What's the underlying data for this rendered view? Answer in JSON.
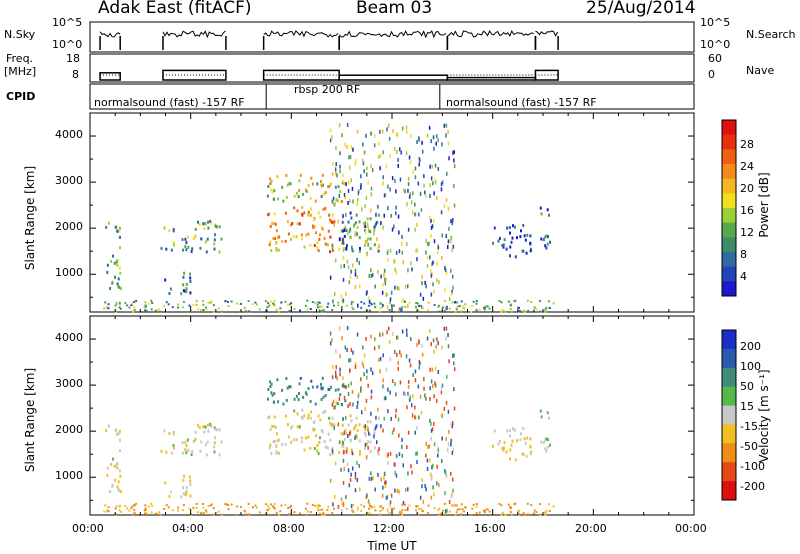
{
  "header": {
    "station": "Adak East (fitACF)",
    "beam": "Beam 03",
    "date": "25/Aug/2014"
  },
  "strips": {
    "nsky_label": "N.Sky",
    "nsky_ticks": [
      "10^5",
      "10^0"
    ],
    "nsearch_label": "N.Search",
    "nsearch_ticks": [
      "10^5",
      "10^0"
    ],
    "freq_label_line1": "Freq.",
    "freq_label_line2": "[MHz]",
    "freq_ticks": [
      "18",
      "8"
    ],
    "nave_label": "Nave",
    "nave_ticks": [
      "60",
      "0"
    ],
    "cpid_label": "CPID",
    "modes": [
      {
        "label": "normalsound (fast) -157 RF",
        "start_hr": 0,
        "end_hr": 7.0
      },
      {
        "label": "rbsp 200 RF",
        "start_hr": 7.0,
        "end_hr": 13.9
      },
      {
        "label": "normalsound (fast) -157 RF",
        "start_hr": 13.9,
        "end_hr": 24
      }
    ]
  },
  "axes": {
    "x_label": "Time UT",
    "x_ticks": [
      "00:00",
      "04:00",
      "08:00",
      "12:00",
      "16:00",
      "20:00",
      "00:00"
    ],
    "x_range_hours": [
      0,
      24
    ],
    "y_label": "Slant Range [km]",
    "y_ticks": [
      "4000",
      "3000",
      "2000",
      "1000"
    ],
    "y_range_km": [
      180,
      4500
    ]
  },
  "colorbars": {
    "power": {
      "title": "Power [dB]",
      "ticks": [
        "28",
        "24",
        "20",
        "16",
        "12",
        "8",
        "4"
      ],
      "colors": [
        "#1a1acc",
        "#2244bb",
        "#2f6aa0",
        "#3c8c6c",
        "#56a84a",
        "#9ccf34",
        "#f0e020",
        "#f5b820",
        "#f58a18",
        "#f06014",
        "#e83010",
        "#dd1010"
      ]
    },
    "velocity": {
      "title": "Velocity [m s⁻¹]",
      "ticks": [
        "200",
        "100",
        "50",
        "15",
        "-15",
        "-50",
        "-100",
        "-200"
      ],
      "colors": [
        "#1b2ec8",
        "#2a5ab0",
        "#3f8c78",
        "#55b84a",
        "#c8c8c8",
        "#f0c020",
        "#f08c18",
        "#e84818",
        "#dd1010"
      ]
    }
  },
  "chart_data": {
    "type": "heatmap",
    "title": "Adak East (fitACF) Beam 03 25/Aug/2014",
    "xlabel": "Time UT",
    "ylabel": "Slant Range [km]",
    "xlim_hours": [
      0,
      24
    ],
    "ylim_km": [
      180,
      4500
    ],
    "echo_regions": [
      {
        "t0": 0.6,
        "t1": 1.2,
        "r0": 300,
        "r1": 2200,
        "power_db": 14,
        "velocity": -10
      },
      {
        "t0": 2.8,
        "t1": 5.2,
        "r0": 1500,
        "r1": 2200,
        "power_db": 12,
        "velocity": -10
      },
      {
        "t0": 2.9,
        "t1": 4.0,
        "r0": 600,
        "r1": 1100,
        "power_db": 8,
        "velocity": -20
      },
      {
        "t0": 7.0,
        "t1": 10.0,
        "r0": 1500,
        "r1": 2500,
        "power_db": 22,
        "velocity": -10
      },
      {
        "t0": 7.0,
        "t1": 10.2,
        "r0": 2600,
        "r1": 3200,
        "power_db": 18,
        "velocity": 80
      },
      {
        "t0": 10.0,
        "t1": 11.5,
        "r0": 1500,
        "r1": 2400,
        "power_db": 10,
        "velocity": -15
      },
      {
        "t0": 15.8,
        "t1": 17.5,
        "r0": 1400,
        "r1": 2100,
        "power_db": 6,
        "velocity": -20
      },
      {
        "t0": 17.8,
        "t1": 18.3,
        "r0": 1600,
        "r1": 2500,
        "power_db": 8,
        "velocity": 0
      }
    ],
    "operating_frequency_mhz": [
      {
        "t0": 0.4,
        "t1": 1.2,
        "value": 11
      },
      {
        "t0": 2.9,
        "t1": 5.4,
        "value": 12
      },
      {
        "t0": 6.9,
        "t1": 9.9,
        "value": 12
      },
      {
        "t0": 9.9,
        "t1": 14.2,
        "value": 10
      },
      {
        "t0": 14.2,
        "t1": 17.7,
        "value": 9
      },
      {
        "t0": 17.7,
        "t1": 18.6,
        "value": 12
      }
    ]
  }
}
